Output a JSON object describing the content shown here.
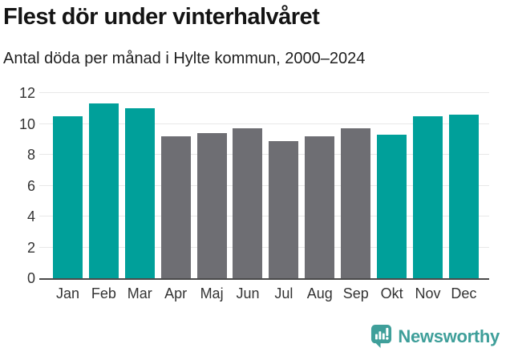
{
  "header": {
    "title": "Flest dör under vinterhalvåret",
    "subtitle": "Antal döda per månad i Hylte kommun, 2000–2024"
  },
  "footer": {
    "brand": "Newsworthy",
    "logo_icon": "newsworthy-speech-bubble-chart-icon"
  },
  "colors": {
    "winter_bar": "#00a09a",
    "summer_bar": "#6e6e73",
    "gridline": "#e8e8e8",
    "axis_line": "#4a4a4a",
    "axis_text": "#333333",
    "title_text": "#141414",
    "brand_teal": "#3f9f9a"
  },
  "chart_data": {
    "type": "bar",
    "title": "Flest dör under vinterhalvåret",
    "subtitle": "Antal döda per månad i Hylte kommun, 2000–2024",
    "categories": [
      "Jan",
      "Feb",
      "Mar",
      "Apr",
      "Maj",
      "Jun",
      "Jul",
      "Aug",
      "Sep",
      "Okt",
      "Nov",
      "Dec"
    ],
    "values": [
      10.5,
      11.3,
      11.0,
      9.2,
      9.4,
      9.7,
      8.9,
      9.2,
      9.7,
      9.3,
      10.5,
      10.6
    ],
    "winter_highlight": [
      true,
      true,
      true,
      false,
      false,
      false,
      false,
      false,
      false,
      true,
      true,
      true
    ],
    "series_colors": {
      "winter": "#00a09a",
      "summer": "#6e6e73"
    },
    "yticks": [
      0,
      2,
      4,
      6,
      8,
      10,
      12
    ],
    "ylim": [
      0,
      12
    ],
    "xlabel": "",
    "ylabel": "",
    "grid": "horizontal",
    "legend": "none"
  }
}
